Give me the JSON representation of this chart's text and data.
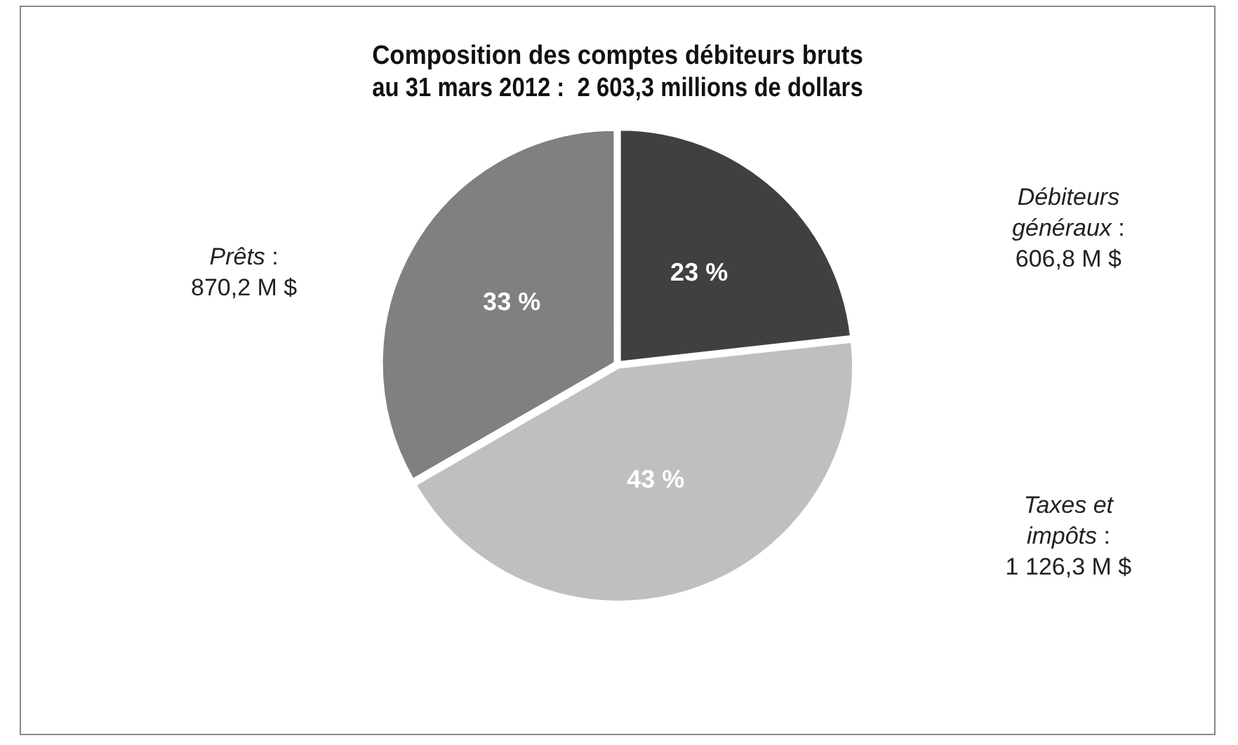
{
  "chart_data": {
    "type": "pie",
    "title": [
      "Composition des comptes débiteurs bruts",
      "au 31 mars 2012 :  2 603,3 millions de dollars"
    ],
    "categories": [
      "Débiteurs généraux",
      "Taxes et impôts",
      "Prêts"
    ],
    "values": [
      23,
      43,
      33
    ],
    "colors": [
      "#404040",
      "#bfbfbf",
      "#808080"
    ],
    "value_labels": [
      "23 %",
      "43 %",
      "33 %"
    ],
    "annotations": [
      {
        "text": ": 606,8 M $",
        "x": "Débiteurs généraux"
      },
      {
        "text": ": 1 126,3 M $",
        "x": "Taxes et impôts"
      },
      {
        "text": ": 870,2 M $",
        "x": "Prêts"
      }
    ],
    "legend": false
  }
}
